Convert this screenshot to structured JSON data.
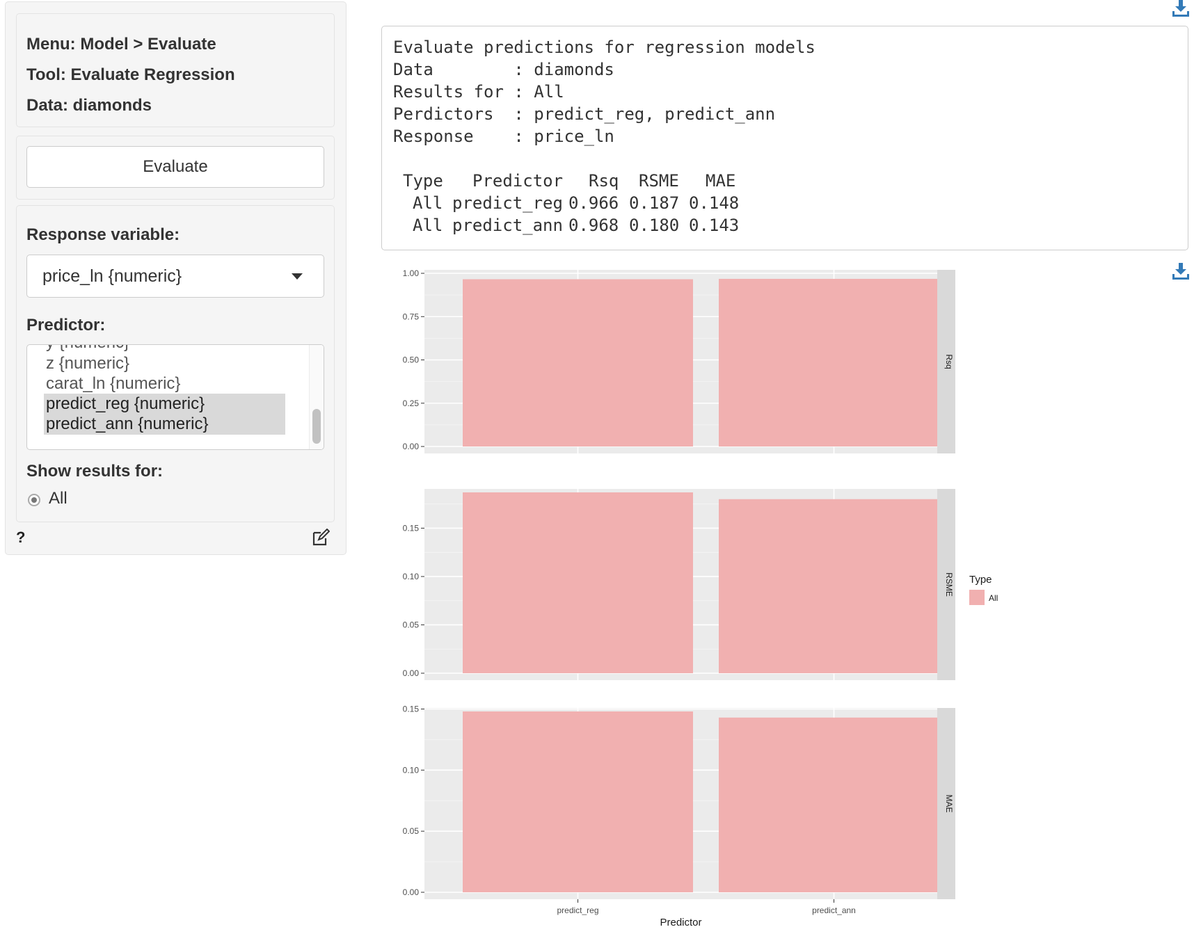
{
  "sidebar": {
    "menu": "Menu: Model > Evaluate",
    "tool": "Tool: Evaluate Regression",
    "data": "Data: diamonds",
    "evaluate_button": "Evaluate",
    "response_label": "Response variable:",
    "response_value": "price_ln {numeric}",
    "predictor_label": "Predictor:",
    "predictor_options": [
      {
        "label": "y {numeric}",
        "selected": false
      },
      {
        "label": "z {numeric}",
        "selected": false
      },
      {
        "label": "carat_ln {numeric}",
        "selected": false
      },
      {
        "label": "predict_reg {numeric}",
        "selected": true
      },
      {
        "label": "predict_ann {numeric}",
        "selected": true
      }
    ],
    "show_results_label": "Show results for:",
    "show_results_option": "All",
    "help": "?"
  },
  "output": {
    "lines": [
      "Evaluate predictions for regression models",
      "Data        : diamonds",
      "Results for : All",
      "Perdictors  : predict_reg, predict_ann",
      "Response    : price_ln"
    ],
    "table": {
      "headers": [
        "Type",
        "Predictor",
        "Rsq",
        "RSME",
        "MAE"
      ],
      "rows": [
        [
          "All",
          "predict_reg",
          "0.966",
          "0.187",
          "0.148"
        ],
        [
          "All",
          "predict_ann",
          "0.968",
          "0.180",
          "0.143"
        ]
      ]
    }
  },
  "icons": {
    "download_top": "download-icon",
    "download_plot": "download-icon",
    "edit": "edit-icon"
  },
  "colors": {
    "bar_fill": "#f1b0b0",
    "panel_bg": "#ebebeb",
    "strip_bg": "#d9d9d9",
    "download_icon": "#337ab7"
  },
  "chart_data": {
    "type": "bar",
    "categories": [
      "predict_reg",
      "predict_ann"
    ],
    "xlabel": "Predictor",
    "facets": [
      {
        "name": "Rsq",
        "values": [
          0.966,
          0.968
        ],
        "ylim": [
          0,
          1.0
        ],
        "ticks": [
          "0.00",
          "0.25",
          "0.50",
          "0.75",
          "1.00"
        ],
        "tick_values": [
          0,
          0.25,
          0.5,
          0.75,
          1.0
        ]
      },
      {
        "name": "RSME",
        "values": [
          0.187,
          0.18
        ],
        "ylim": [
          0,
          0.187
        ],
        "ticks": [
          "0.00",
          "0.05",
          "0.10",
          "0.15"
        ],
        "tick_values": [
          0,
          0.05,
          0.1,
          0.15
        ]
      },
      {
        "name": "MAE",
        "values": [
          0.148,
          0.143
        ],
        "ylim": [
          0,
          0.148
        ],
        "ticks": [
          "0.00",
          "0.05",
          "0.10",
          "0.15"
        ],
        "tick_values": [
          0,
          0.05,
          0.1,
          0.15
        ]
      }
    ],
    "legend": {
      "title": "Type",
      "entries": [
        "All"
      ],
      "position": "right"
    },
    "grid": true
  }
}
